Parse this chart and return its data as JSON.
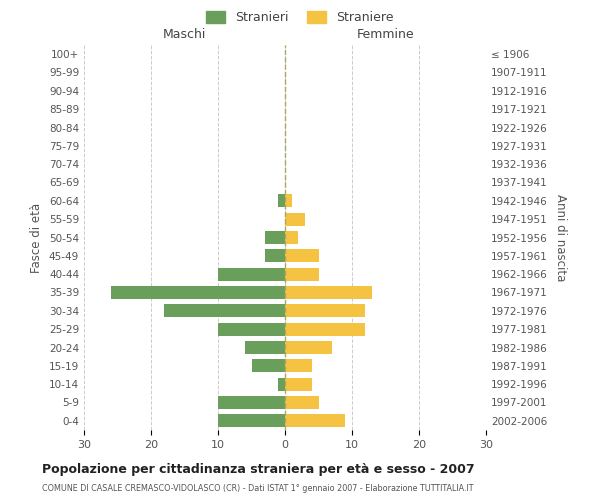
{
  "age_groups": [
    "100+",
    "95-99",
    "90-94",
    "85-89",
    "80-84",
    "75-79",
    "70-74",
    "65-69",
    "60-64",
    "55-59",
    "50-54",
    "45-49",
    "40-44",
    "35-39",
    "30-34",
    "25-29",
    "20-24",
    "15-19",
    "10-14",
    "5-9",
    "0-4"
  ],
  "birth_years": [
    "≤ 1906",
    "1907-1911",
    "1912-1916",
    "1917-1921",
    "1922-1926",
    "1927-1931",
    "1932-1936",
    "1937-1941",
    "1942-1946",
    "1947-1951",
    "1952-1956",
    "1957-1961",
    "1962-1966",
    "1967-1971",
    "1972-1976",
    "1977-1981",
    "1982-1986",
    "1987-1991",
    "1992-1996",
    "1997-2001",
    "2002-2006"
  ],
  "males": [
    0,
    0,
    0,
    0,
    0,
    0,
    0,
    0,
    1,
    0,
    3,
    3,
    10,
    26,
    18,
    10,
    6,
    5,
    1,
    10,
    10
  ],
  "females": [
    0,
    0,
    0,
    0,
    0,
    0,
    0,
    0,
    1,
    3,
    2,
    5,
    5,
    13,
    12,
    12,
    7,
    4,
    4,
    5,
    9
  ],
  "male_color": "#6a9e5b",
  "female_color": "#f5c242",
  "title": "Popolazione per cittadinanza straniera per età e sesso - 2007",
  "subtitle": "COMUNE DI CASALE CREMASCO-VIDOLASCO (CR) - Dati ISTAT 1° gennaio 2007 - Elaborazione TUTTITALIA.IT",
  "xlabel_left": "Maschi",
  "xlabel_right": "Femmine",
  "ylabel_left": "Fasce di età",
  "ylabel_right": "Anni di nascita",
  "legend_male": "Stranieri",
  "legend_female": "Straniere",
  "xlim": 30,
  "background_color": "#ffffff",
  "grid_color": "#cccccc"
}
